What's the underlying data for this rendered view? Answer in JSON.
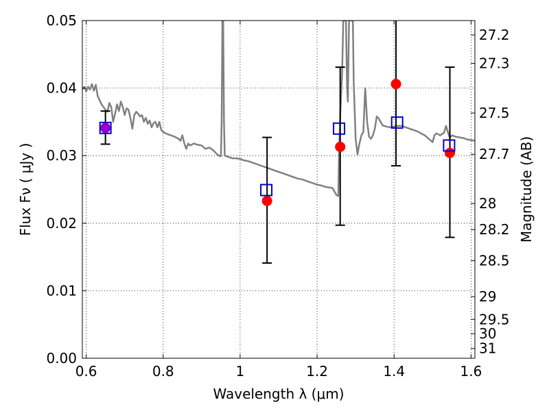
{
  "chart_data": {
    "type": "scatter",
    "xlabel": "Wavelength  λ (μm)",
    "ylabel": "Flux  Fν  ( μJy )",
    "y2label": "Magnitude (AB)",
    "xlim": [
      0.59,
      1.61
    ],
    "ylim": [
      0.0,
      0.05
    ],
    "grid": "dotted",
    "x_ticks": [
      {
        "value": 0.6,
        "label": "0.6"
      },
      {
        "value": 0.8,
        "label": "0.8"
      },
      {
        "value": 1.0,
        "label": "1"
      },
      {
        "value": 1.2,
        "label": "1.2"
      },
      {
        "value": 1.4,
        "label": "1.4"
      },
      {
        "value": 1.6,
        "label": "1.6"
      }
    ],
    "y_ticks": [
      {
        "value": 0.0,
        "label": "0.00"
      },
      {
        "value": 0.01,
        "label": "0.01"
      },
      {
        "value": 0.02,
        "label": "0.02"
      },
      {
        "value": 0.03,
        "label": "0.03"
      },
      {
        "value": 0.04,
        "label": "0.04"
      },
      {
        "value": 0.05,
        "label": "0.05"
      }
    ],
    "y2_ticks": [
      {
        "mag": 27.2,
        "label": "27.2"
      },
      {
        "mag": 27.3,
        "label": "27.3"
      },
      {
        "mag": 27.5,
        "label": "27.5"
      },
      {
        "mag": 27.7,
        "label": "27.7"
      },
      {
        "mag": 28.0,
        "label": "28"
      },
      {
        "mag": 28.2,
        "label": "28.2"
      },
      {
        "mag": 28.5,
        "label": "28.5"
      },
      {
        "mag": 29.0,
        "label": "29"
      },
      {
        "mag": 29.5,
        "label": "29.5"
      },
      {
        "mag": 30.0,
        "label": "30"
      },
      {
        "mag": 31.0,
        "label": "31"
      }
    ],
    "model_spectrum": {
      "color": "#808080",
      "points": [
        [
          0.59,
          0.0398
        ],
        [
          0.595,
          0.0402
        ],
        [
          0.6,
          0.0395
        ],
        [
          0.605,
          0.0402
        ],
        [
          0.61,
          0.0398
        ],
        [
          0.615,
          0.0406
        ],
        [
          0.62,
          0.0396
        ],
        [
          0.625,
          0.0405
        ],
        [
          0.63,
          0.0388
        ],
        [
          0.635,
          0.0382
        ],
        [
          0.64,
          0.0376
        ],
        [
          0.645,
          0.0372
        ],
        [
          0.65,
          0.0368
        ],
        [
          0.655,
          0.0365
        ],
        [
          0.66,
          0.0378
        ],
        [
          0.665,
          0.0372
        ],
        [
          0.67,
          0.035
        ],
        [
          0.675,
          0.0362
        ],
        [
          0.68,
          0.0376
        ],
        [
          0.685,
          0.0366
        ],
        [
          0.69,
          0.038
        ],
        [
          0.695,
          0.0372
        ],
        [
          0.7,
          0.036
        ],
        [
          0.705,
          0.037
        ],
        [
          0.71,
          0.0368
        ],
        [
          0.715,
          0.0355
        ],
        [
          0.72,
          0.034
        ],
        [
          0.725,
          0.036
        ],
        [
          0.73,
          0.0365
        ],
        [
          0.735,
          0.0362
        ],
        [
          0.74,
          0.0358
        ],
        [
          0.745,
          0.036
        ],
        [
          0.75,
          0.035
        ],
        [
          0.755,
          0.0356
        ],
        [
          0.76,
          0.0347
        ],
        [
          0.765,
          0.0352
        ],
        [
          0.77,
          0.0342
        ],
        [
          0.775,
          0.0348
        ],
        [
          0.78,
          0.035
        ],
        [
          0.785,
          0.0342
        ],
        [
          0.79,
          0.035
        ],
        [
          0.795,
          0.0338
        ],
        [
          0.8,
          0.0335
        ],
        [
          0.81,
          0.0332
        ],
        [
          0.82,
          0.033
        ],
        [
          0.83,
          0.0328
        ],
        [
          0.84,
          0.0325
        ],
        [
          0.845,
          0.0322
        ],
        [
          0.85,
          0.033
        ],
        [
          0.855,
          0.0318
        ],
        [
          0.86,
          0.031
        ],
        [
          0.865,
          0.0318
        ],
        [
          0.87,
          0.0315
        ],
        [
          0.88,
          0.0318
        ],
        [
          0.89,
          0.0316
        ],
        [
          0.9,
          0.0315
        ],
        [
          0.91,
          0.031
        ],
        [
          0.92,
          0.0312
        ],
        [
          0.93,
          0.0308
        ],
        [
          0.94,
          0.0302
        ],
        [
          0.945,
          0.03
        ],
        [
          0.95,
          0.0299
        ],
        [
          0.952,
          0.035
        ],
        [
          0.954,
          0.05
        ],
        [
          0.956,
          0.05
        ],
        [
          0.958,
          0.035
        ],
        [
          0.96,
          0.03
        ],
        [
          0.97,
          0.0298
        ],
        [
          0.98,
          0.0296
        ],
        [
          0.99,
          0.0296
        ],
        [
          1.0,
          0.0295
        ],
        [
          1.01,
          0.0293
        ],
        [
          1.02,
          0.0292
        ],
        [
          1.03,
          0.029
        ],
        [
          1.04,
          0.0288
        ],
        [
          1.05,
          0.0286
        ],
        [
          1.06,
          0.0284
        ],
        [
          1.07,
          0.0282
        ],
        [
          1.08,
          0.028
        ],
        [
          1.09,
          0.0278
        ],
        [
          1.1,
          0.0276
        ],
        [
          1.11,
          0.0274
        ],
        [
          1.12,
          0.0272
        ],
        [
          1.13,
          0.027
        ],
        [
          1.14,
          0.0268
        ],
        [
          1.15,
          0.0266
        ],
        [
          1.16,
          0.0265
        ],
        [
          1.17,
          0.0263
        ],
        [
          1.18,
          0.0261
        ],
        [
          1.19,
          0.0259
        ],
        [
          1.2,
          0.0257
        ],
        [
          1.21,
          0.0256
        ],
        [
          1.22,
          0.0254
        ],
        [
          1.23,
          0.0253
        ],
        [
          1.24,
          0.0252
        ],
        [
          1.245,
          0.0247
        ],
        [
          1.25,
          0.0242
        ],
        [
          1.255,
          0.024
        ],
        [
          1.257,
          0.03
        ],
        [
          1.26,
          0.036
        ],
        [
          1.265,
          0.042
        ],
        [
          1.268,
          0.05
        ],
        [
          1.275,
          0.05
        ],
        [
          1.278,
          0.04
        ],
        [
          1.28,
          0.038
        ],
        [
          1.283,
          0.05
        ],
        [
          1.293,
          0.05
        ],
        [
          1.295,
          0.041
        ],
        [
          1.3,
          0.0325
        ],
        [
          1.305,
          0.0302
        ],
        [
          1.31,
          0.0318
        ],
        [
          1.315,
          0.033
        ],
        [
          1.32,
          0.0335
        ],
        [
          1.325,
          0.04
        ],
        [
          1.33,
          0.035
        ],
        [
          1.335,
          0.0328
        ],
        [
          1.34,
          0.0325
        ],
        [
          1.345,
          0.033
        ],
        [
          1.35,
          0.034
        ],
        [
          1.355,
          0.0358
        ],
        [
          1.36,
          0.0355
        ],
        [
          1.365,
          0.035
        ],
        [
          1.37,
          0.0345
        ],
        [
          1.38,
          0.0343
        ],
        [
          1.39,
          0.0342
        ],
        [
          1.4,
          0.0343
        ],
        [
          1.41,
          0.0344
        ],
        [
          1.42,
          0.0344
        ],
        [
          1.43,
          0.0342
        ],
        [
          1.44,
          0.034
        ],
        [
          1.45,
          0.0338
        ],
        [
          1.46,
          0.0336
        ],
        [
          1.47,
          0.0333
        ],
        [
          1.48,
          0.033
        ],
        [
          1.49,
          0.0325
        ],
        [
          1.5,
          0.032
        ],
        [
          1.505,
          0.033
        ],
        [
          1.51,
          0.0333
        ],
        [
          1.52,
          0.033
        ],
        [
          1.53,
          0.0334
        ],
        [
          1.535,
          0.0344
        ],
        [
          1.54,
          0.0335
        ],
        [
          1.545,
          0.0326
        ],
        [
          1.55,
          0.033
        ],
        [
          1.56,
          0.0328
        ],
        [
          1.57,
          0.0327
        ],
        [
          1.58,
          0.0326
        ],
        [
          1.59,
          0.0324
        ],
        [
          1.6,
          0.0323
        ],
        [
          1.61,
          0.0322
        ]
      ]
    },
    "red_points": {
      "color": "#ff0000",
      "points": [
        {
          "x": 0.65,
          "y": 0.0341,
          "yerr_low": 0.0317,
          "yerr_high": 0.0366
        },
        {
          "x": 1.07,
          "y": 0.0233,
          "yerr_low": 0.0141,
          "yerr_high": 0.0327
        },
        {
          "x": 1.26,
          "y": 0.0313,
          "yerr_low": 0.0197,
          "yerr_high": 0.0431
        },
        {
          "x": 1.405,
          "y": 0.0406,
          "yerr_low": 0.0285,
          "yerr_high": 0.05
        },
        {
          "x": 1.545,
          "y": 0.0304,
          "yerr_low": 0.0179,
          "yerr_high": 0.0431
        }
      ]
    },
    "blue_squares": {
      "color": "#0000cc",
      "points": [
        {
          "x": 0.65,
          "y": 0.0341
        },
        {
          "x": 1.068,
          "y": 0.0249
        },
        {
          "x": 1.257,
          "y": 0.034
        },
        {
          "x": 1.408,
          "y": 0.0349
        },
        {
          "x": 1.543,
          "y": 0.0315
        }
      ]
    },
    "highlight_color": "#9900cc"
  }
}
